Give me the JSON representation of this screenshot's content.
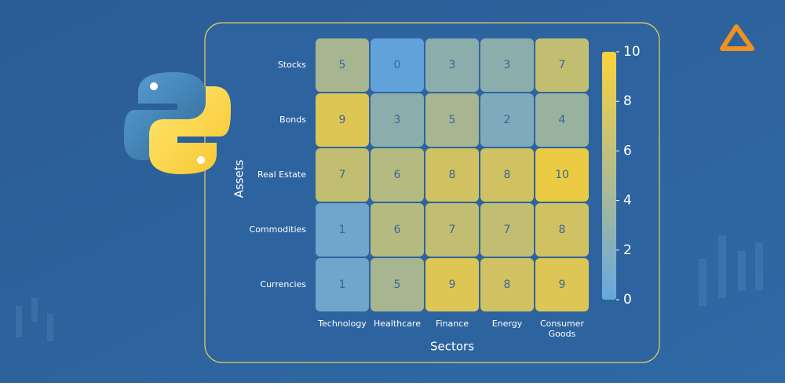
{
  "chart_data": {
    "type": "heatmap",
    "x_label": "Sectors",
    "y_label": "Assets",
    "categories": [
      "Technology",
      "Healthcare",
      "Finance",
      "Energy",
      "Consumer Goods"
    ],
    "rows": [
      "Stocks",
      "Bonds",
      "Real Estate",
      "Commodities",
      "Currencies"
    ],
    "values": [
      [
        5,
        0,
        3,
        3,
        7
      ],
      [
        9,
        3,
        5,
        2,
        4
      ],
      [
        7,
        6,
        8,
        8,
        10
      ],
      [
        1,
        6,
        7,
        7,
        8
      ],
      [
        1,
        5,
        9,
        8,
        9
      ]
    ],
    "colormap": [
      "#67a7df",
      "#fcd23c"
    ],
    "clim": [
      0,
      10
    ],
    "cticks": [
      0,
      2,
      4,
      6,
      8,
      10
    ]
  }
}
